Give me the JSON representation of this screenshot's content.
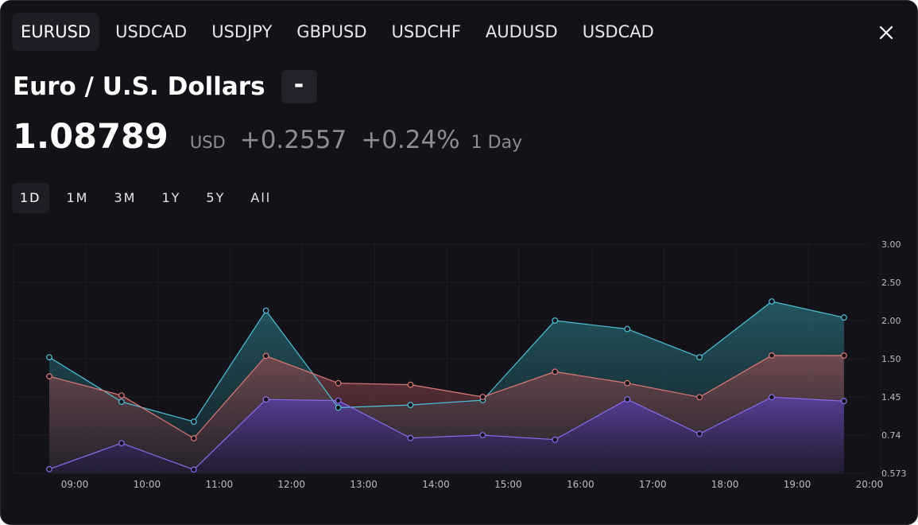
{
  "tabs": [
    {
      "label": "EURUSD",
      "active": true
    },
    {
      "label": "USDCAD",
      "active": false
    },
    {
      "label": "USDJPY",
      "active": false
    },
    {
      "label": "GBPUSD",
      "active": false
    },
    {
      "label": "USDCHF",
      "active": false
    },
    {
      "label": "AUDUSD",
      "active": false
    },
    {
      "label": "USDCAD",
      "active": false
    }
  ],
  "close_icon": "close-icon",
  "header": {
    "title": "Euro / U.S. Dollars",
    "toggle_label": "-"
  },
  "quote": {
    "price": "1.08789",
    "currency": "USD",
    "change": "+0.2557",
    "change_pct": "+0.24%",
    "period": "1 Day"
  },
  "ranges": [
    {
      "label": "1D",
      "active": true
    },
    {
      "label": "1M",
      "active": false
    },
    {
      "label": "3M",
      "active": false
    },
    {
      "label": "1Y",
      "active": false
    },
    {
      "label": "5Y",
      "active": false
    },
    {
      "label": "All",
      "active": false
    }
  ],
  "colors": {
    "background": "#131218",
    "series_top": "#4fc3d9",
    "series_mid": "#e07a76",
    "series_low": "#8a6cf0"
  },
  "chart_data": {
    "type": "area",
    "x": [
      "08:40",
      "09:40",
      "10:40",
      "11:40",
      "12:40",
      "13:40",
      "14:40",
      "15:40",
      "16:40",
      "17:40",
      "18:40",
      "19:40"
    ],
    "x_ticks": [
      "09:00",
      "10:00",
      "11:00",
      "12:00",
      "13:00",
      "14:00",
      "15:00",
      "16:00",
      "17:00",
      "18:00",
      "19:00",
      "20:00"
    ],
    "y_ticks": [
      "3.00",
      "2.50",
      "2.00",
      "1.50",
      "1.45",
      "0.74",
      "0.573"
    ],
    "series": [
      {
        "values": [
          1.52,
          1.36,
          0.99,
          2.13,
          1.25,
          1.3,
          1.39,
          2.0,
          1.89,
          1.52,
          2.25,
          2.04
        ]
      },
      {
        "values": [
          1.477,
          1.452,
          0.726,
          1.537,
          1.468,
          1.466,
          1.45,
          1.483,
          1.468,
          1.446,
          1.543,
          1.542
        ]
      },
      {
        "values": [
          0.591,
          0.705,
          0.589,
          1.402,
          1.382,
          0.727,
          0.74,
          0.72,
          1.404,
          0.764,
          1.445,
          1.373
        ]
      }
    ],
    "grid": true
  }
}
